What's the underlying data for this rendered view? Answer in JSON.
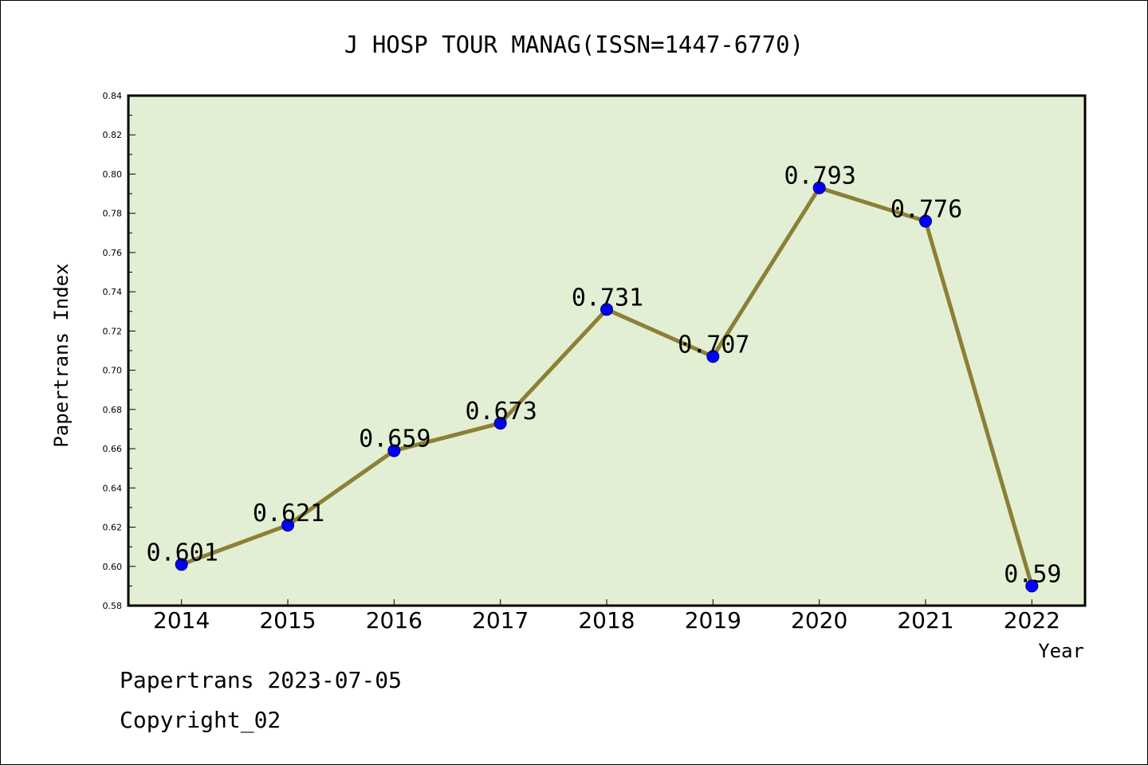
{
  "chart_data": {
    "type": "line",
    "title": "J HOSP TOUR MANAG(ISSN=1447-6770)",
    "xlabel": "Year",
    "ylabel": "Papertrans Index",
    "categories": [
      "2014",
      "2015",
      "2016",
      "2017",
      "2018",
      "2019",
      "2020",
      "2021",
      "2022"
    ],
    "series": [
      {
        "values": [
          0.601,
          0.621,
          0.659,
          0.673,
          0.731,
          0.707,
          0.793,
          0.776,
          0.59
        ]
      }
    ],
    "data_labels": [
      "0.601",
      "0.621",
      "0.659",
      "0.673",
      "0.731",
      "0.707",
      "0.793",
      "0.776",
      "0.59"
    ],
    "ylim": [
      0.58,
      0.84
    ],
    "yticks": [
      "0.58",
      "0.60",
      "0.62",
      "0.64",
      "0.66",
      "0.68",
      "0.70",
      "0.72",
      "0.74",
      "0.76",
      "0.78",
      "0.80",
      "0.82",
      "0.84"
    ],
    "grid": false,
    "colors": {
      "plot_background": "#e2efd4",
      "line": "#8c7f36",
      "marker": "#0000ff"
    }
  },
  "footer": {
    "date_line": "Papertrans 2023-07-05",
    "copyright": "Copyright_02"
  }
}
